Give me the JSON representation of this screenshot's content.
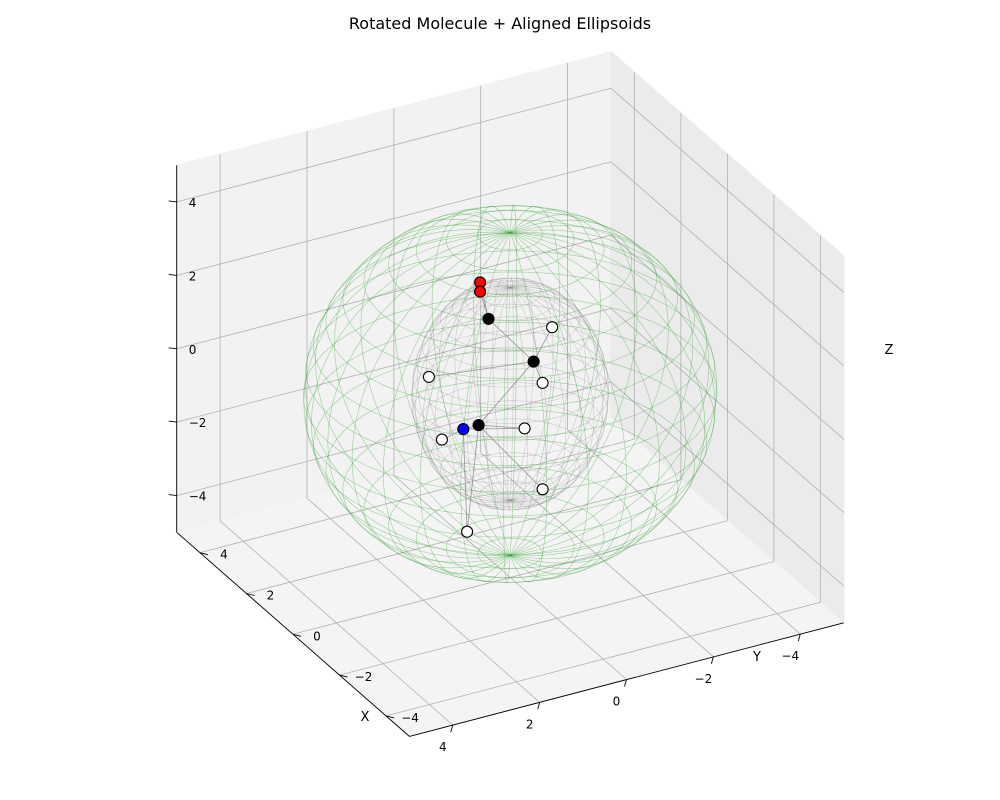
{
  "chart_data": {
    "type": "scatter",
    "title": "Rotated Molecule + Aligned Ellipsoids",
    "xlabel": "X",
    "ylabel": "Y",
    "zlabel": "Z",
    "xlim": [
      -5,
      5
    ],
    "ylim": [
      -5,
      5
    ],
    "zlim": [
      -5,
      5
    ],
    "grid": true,
    "x_ticks": [
      -4,
      -2,
      0,
      2,
      4
    ],
    "y_ticks": [
      -4,
      -2,
      0,
      2,
      4
    ],
    "z_ticks": [
      -4,
      -2,
      0,
      2,
      4
    ],
    "x_tick_labels": [
      "−4",
      "−2",
      "0",
      "2",
      "4"
    ],
    "y_tick_labels": [
      "−4",
      "−2",
      "0",
      "2",
      "4"
    ],
    "z_tick_labels": [
      "−4",
      "−2",
      "0",
      "2",
      "4"
    ],
    "atoms": [
      {
        "element": "O",
        "color": "#ff0000",
        "xyz": [
          0.8,
          -0.2,
          3.4
        ]
      },
      {
        "element": "O",
        "color": "#ff0000",
        "xyz": [
          0.8,
          -0.2,
          3.15
        ]
      },
      {
        "element": "C",
        "color": "#000000",
        "xyz": [
          0.5,
          0.0,
          2.2
        ]
      },
      {
        "element": "C",
        "color": "#000000",
        "xyz": [
          -0.7,
          0.3,
          0.5
        ]
      },
      {
        "element": "C",
        "color": "#000000",
        "xyz": [
          0.3,
          0.8,
          -1.2
        ]
      },
      {
        "element": "N",
        "color": "#0000ff",
        "xyz": [
          0.65,
          0.8,
          -1.2
        ]
      },
      {
        "element": "H",
        "color": "#ffffff",
        "xyz": [
          -1.5,
          1.0,
          0.8
        ]
      },
      {
        "element": "H",
        "color": "#ffffff",
        "xyz": [
          -0.8,
          0.1,
          0.0
        ]
      },
      {
        "element": "H",
        "color": "#ffffff",
        "xyz": [
          0.8,
          2.0,
          -0.4
        ]
      },
      {
        "element": "H",
        "color": "#ffffff",
        "xyz": [
          -0.6,
          0.5,
          -1.4
        ]
      },
      {
        "element": "H",
        "color": "#ffffff",
        "xyz": [
          0.5,
          2.0,
          -2.2
        ]
      },
      {
        "element": "H",
        "color": "#ffffff",
        "xyz": [
          -0.8,
          0.1,
          -2.9
        ]
      },
      {
        "element": "H",
        "color": "#ffffff",
        "xyz": [
          1.1,
          -0.2,
          -3.3
        ]
      }
    ],
    "bonds": [
      [
        0,
        2
      ],
      [
        1,
        2
      ],
      [
        2,
        3
      ],
      [
        3,
        6
      ],
      [
        3,
        7
      ],
      [
        3,
        8
      ],
      [
        3,
        4
      ],
      [
        4,
        5
      ],
      [
        4,
        9
      ],
      [
        4,
        11
      ],
      [
        5,
        10
      ],
      [
        5,
        12
      ],
      [
        5,
        9
      ],
      [
        4,
        12
      ]
    ],
    "ellipsoids": [
      {
        "name": "inner",
        "color": "#808080",
        "radii": [
          2.0,
          2.0,
          2.9
        ],
        "center": [
          0,
          0,
          0
        ]
      },
      {
        "name": "outer",
        "color": "#2ca02c",
        "radii": [
          4.2,
          4.2,
          4.4
        ],
        "center": [
          0,
          0,
          0
        ]
      }
    ]
  }
}
